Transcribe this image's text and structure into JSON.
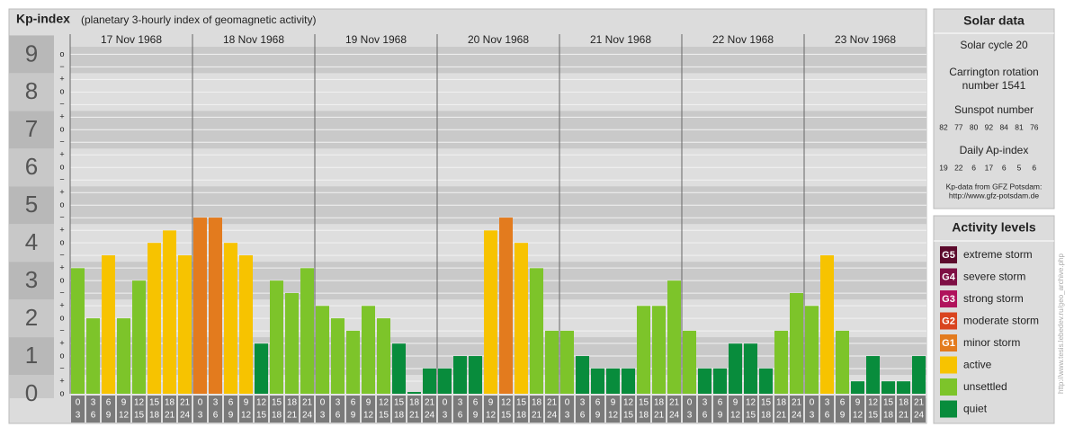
{
  "chart_data": {
    "type": "bar",
    "title": "Kp-index",
    "subtitle": "(planetary 3-hourly index of geomagnetic activity)",
    "ylim": [
      0,
      9.2
    ],
    "yticks": [
      0,
      1,
      2,
      3,
      4,
      5,
      6,
      7,
      8,
      9
    ],
    "sublabels": {
      "minus": "−",
      "zero": "o",
      "plus": "+"
    },
    "intervals": [
      [
        0,
        3
      ],
      [
        3,
        6
      ],
      [
        6,
        9
      ],
      [
        9,
        12
      ],
      [
        12,
        15
      ],
      [
        15,
        18
      ],
      [
        18,
        21
      ],
      [
        21,
        24
      ]
    ],
    "grid": true,
    "days": [
      {
        "date": "17 Nov 1968",
        "values": [
          3.33,
          2,
          3.67,
          2,
          3,
          4,
          4.33,
          3.67
        ],
        "colors": [
          "#7dc42a",
          "#7dc42a",
          "#f7c300",
          "#7dc42a",
          "#7dc42a",
          "#f7c300",
          "#f7c300",
          "#f7c300"
        ]
      },
      {
        "date": "18 Nov 1968",
        "values": [
          4.67,
          4.67,
          4,
          3.67,
          1.33,
          3,
          2.67,
          3.33
        ],
        "colors": [
          "#e37b1e",
          "#e37b1e",
          "#f7c300",
          "#f7c300",
          "#088c3c",
          "#7dc42a",
          "#7dc42a",
          "#7dc42a"
        ]
      },
      {
        "date": "19 Nov 1968",
        "values": [
          2.33,
          2,
          1.67,
          2.33,
          2,
          1.33,
          0,
          0.67
        ],
        "colors": [
          "#7dc42a",
          "#7dc42a",
          "#7dc42a",
          "#7dc42a",
          "#7dc42a",
          "#088c3c",
          "#088c3c",
          "#088c3c"
        ]
      },
      {
        "date": "20 Nov 1968",
        "values": [
          0.67,
          1,
          1,
          4.33,
          4.67,
          4,
          3.33,
          1.67
        ],
        "colors": [
          "#088c3c",
          "#088c3c",
          "#088c3c",
          "#f7c300",
          "#e37b1e",
          "#f7c300",
          "#7dc42a",
          "#7dc42a"
        ]
      },
      {
        "date": "21 Nov 1968",
        "values": [
          1.67,
          1,
          0.67,
          0.67,
          0.67,
          2.33,
          2.33,
          3
        ],
        "colors": [
          "#7dc42a",
          "#088c3c",
          "#088c3c",
          "#088c3c",
          "#088c3c",
          "#7dc42a",
          "#7dc42a",
          "#7dc42a"
        ]
      },
      {
        "date": "22 Nov 1968",
        "values": [
          1.67,
          0.67,
          0.67,
          1.33,
          1.33,
          0.67,
          1.67,
          2.67
        ],
        "colors": [
          "#7dc42a",
          "#088c3c",
          "#088c3c",
          "#088c3c",
          "#088c3c",
          "#088c3c",
          "#7dc42a",
          "#7dc42a"
        ]
      },
      {
        "date": "23 Nov 1968",
        "values": [
          2.33,
          3.67,
          1.67,
          0.33,
          1,
          0.33,
          0.33,
          1
        ],
        "colors": [
          "#7dc42a",
          "#f7c300",
          "#7dc42a",
          "#088c3c",
          "#088c3c",
          "#088c3c",
          "#088c3c",
          "#088c3c"
        ]
      }
    ]
  },
  "solar": {
    "title": "Solar data",
    "cycle": "Solar cycle 20",
    "carrington": [
      "Carrington rotation",
      "number 1541"
    ],
    "sunspot_title": "Sunspot number",
    "sunspots": [
      82,
      77,
      80,
      92,
      84,
      81,
      76
    ],
    "ap_title": "Daily Ap-index",
    "ap": [
      19,
      22,
      6,
      17,
      6,
      5,
      6
    ],
    "source": [
      "Kp-data from GFZ Potsdam:",
      "http://www.gfz-potsdam.de"
    ]
  },
  "levels": {
    "title": "Activity levels",
    "items": [
      {
        "code": "G5",
        "name": "extreme storm",
        "color": "#5c0a2c"
      },
      {
        "code": "G4",
        "name": "severe storm",
        "color": "#7e0f44"
      },
      {
        "code": "G3",
        "name": "strong storm",
        "color": "#b0125c"
      },
      {
        "code": "G2",
        "name": "moderate storm",
        "color": "#d9441f"
      },
      {
        "code": "G1",
        "name": "minor storm",
        "color": "#e37b1e"
      },
      {
        "code": null,
        "name": "active",
        "color": "#f7c300"
      },
      {
        "code": null,
        "name": "unsettled",
        "color": "#7dc42a"
      },
      {
        "code": null,
        "name": "quiet",
        "color": "#088c3c"
      }
    ]
  },
  "credit": "http://www.tesis.lebedev.ru/geo_archive.php"
}
